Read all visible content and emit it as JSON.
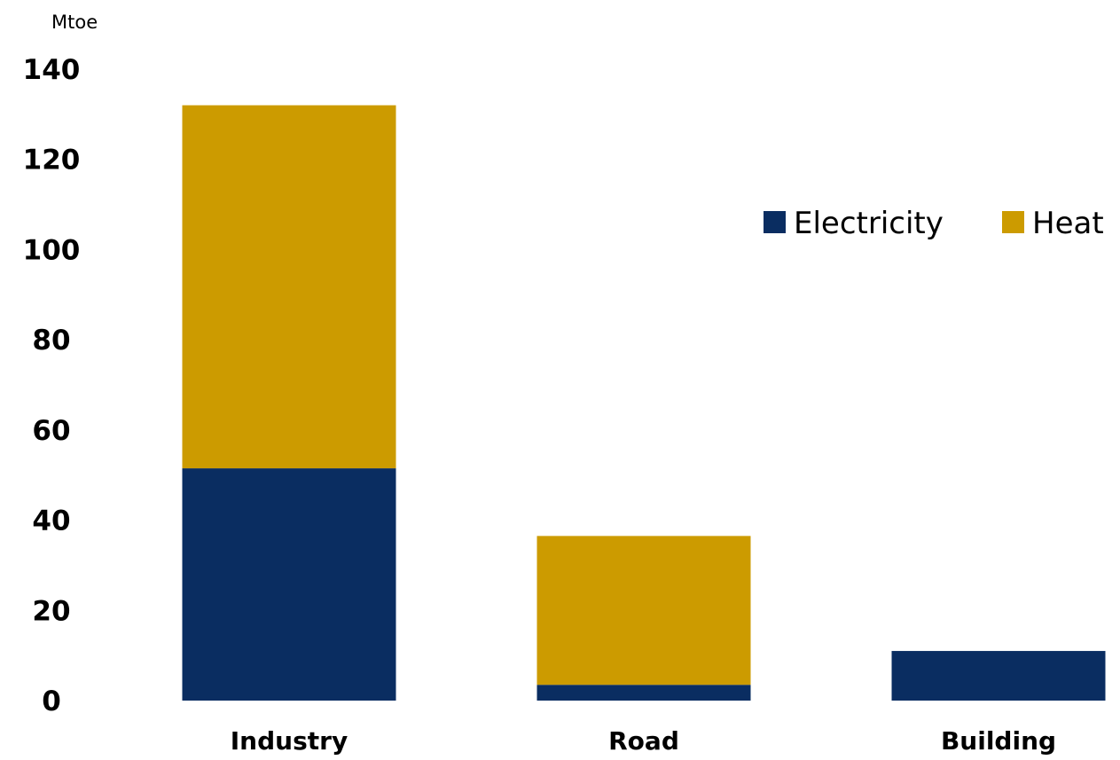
{
  "chart_data": {
    "type": "bar",
    "stacked": true,
    "ylabel": "Mtoe",
    "categories": [
      "Industry",
      "Road",
      "Building"
    ],
    "series": [
      {
        "name": "Electricity",
        "color": "#0A2D61",
        "values": [
          51.5,
          3.5,
          11
        ]
      },
      {
        "name": "Heat",
        "color": "#CC9B00",
        "values": [
          80.5,
          33,
          0
        ]
      }
    ],
    "ylim": [
      0,
      140
    ],
    "yticks": [
      0,
      20,
      40,
      60,
      80,
      100,
      120,
      140
    ],
    "grid": false,
    "legend_position": "right"
  }
}
